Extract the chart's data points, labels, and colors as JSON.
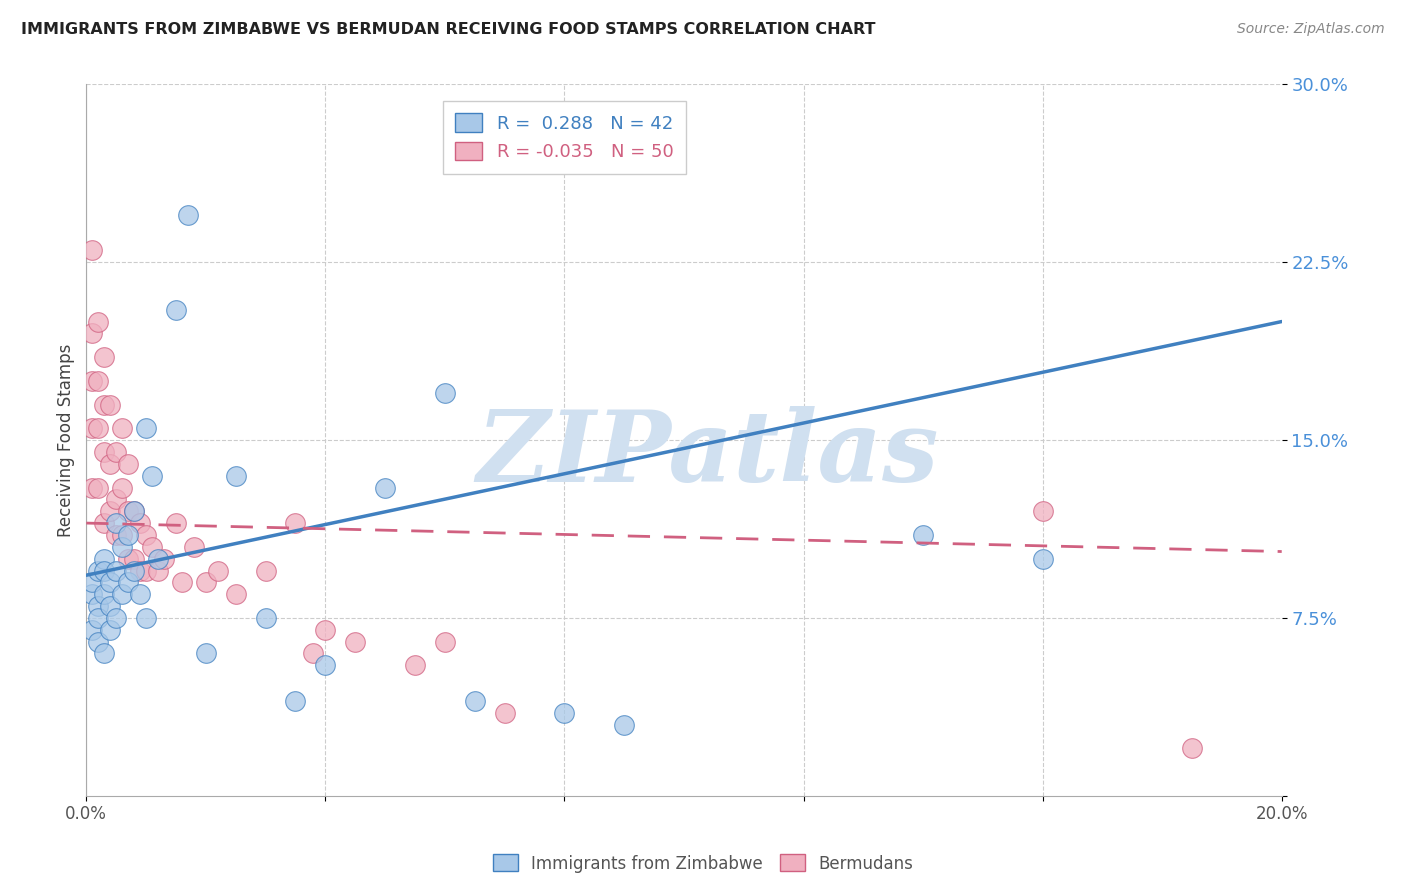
{
  "title": "IMMIGRANTS FROM ZIMBABWE VS BERMUDAN RECEIVING FOOD STAMPS CORRELATION CHART",
  "source": "Source: ZipAtlas.com",
  "ylabel": "Receiving Food Stamps",
  "xlim": [
    0.0,
    0.2
  ],
  "ylim": [
    0.0,
    0.3
  ],
  "yticks": [
    0.0,
    0.075,
    0.15,
    0.225,
    0.3
  ],
  "yticklabels": [
    "",
    "7.5%",
    "15.0%",
    "22.5%",
    "30.0%"
  ],
  "legend_R1": "R =  0.288",
  "legend_N1": "N = 42",
  "legend_R2": "R = -0.035",
  "legend_N2": "N = 50",
  "blue_color": "#a8c8e8",
  "pink_color": "#f0b0c0",
  "trend_blue": "#4080c0",
  "trend_pink": "#d06080",
  "watermark": "ZIPatlas",
  "watermark_color": "#d0e0f0",
  "background_color": "#ffffff",
  "zimbabwe_x": [
    0.001,
    0.001,
    0.001,
    0.002,
    0.002,
    0.002,
    0.002,
    0.003,
    0.003,
    0.003,
    0.003,
    0.004,
    0.004,
    0.004,
    0.005,
    0.005,
    0.005,
    0.006,
    0.006,
    0.007,
    0.007,
    0.008,
    0.008,
    0.009,
    0.01,
    0.01,
    0.011,
    0.012,
    0.015,
    0.017,
    0.02,
    0.025,
    0.03,
    0.035,
    0.04,
    0.05,
    0.06,
    0.065,
    0.08,
    0.09,
    0.14,
    0.16
  ],
  "zimbabwe_y": [
    0.085,
    0.09,
    0.07,
    0.095,
    0.08,
    0.075,
    0.065,
    0.1,
    0.085,
    0.095,
    0.06,
    0.09,
    0.08,
    0.07,
    0.115,
    0.095,
    0.075,
    0.105,
    0.085,
    0.11,
    0.09,
    0.12,
    0.095,
    0.085,
    0.155,
    0.075,
    0.135,
    0.1,
    0.205,
    0.245,
    0.06,
    0.135,
    0.075,
    0.04,
    0.055,
    0.13,
    0.17,
    0.04,
    0.035,
    0.03,
    0.11,
    0.1
  ],
  "bermuda_x": [
    0.001,
    0.001,
    0.001,
    0.001,
    0.001,
    0.002,
    0.002,
    0.002,
    0.002,
    0.003,
    0.003,
    0.003,
    0.003,
    0.004,
    0.004,
    0.004,
    0.005,
    0.005,
    0.005,
    0.006,
    0.006,
    0.006,
    0.007,
    0.007,
    0.007,
    0.008,
    0.008,
    0.009,
    0.009,
    0.01,
    0.01,
    0.011,
    0.012,
    0.013,
    0.015,
    0.016,
    0.018,
    0.02,
    0.022,
    0.025,
    0.03,
    0.035,
    0.038,
    0.04,
    0.045,
    0.055,
    0.06,
    0.07,
    0.16,
    0.185
  ],
  "bermuda_y": [
    0.23,
    0.195,
    0.175,
    0.155,
    0.13,
    0.2,
    0.175,
    0.155,
    0.13,
    0.185,
    0.165,
    0.145,
    0.115,
    0.165,
    0.14,
    0.12,
    0.145,
    0.125,
    0.11,
    0.155,
    0.13,
    0.11,
    0.14,
    0.12,
    0.1,
    0.12,
    0.1,
    0.115,
    0.095,
    0.11,
    0.095,
    0.105,
    0.095,
    0.1,
    0.115,
    0.09,
    0.105,
    0.09,
    0.095,
    0.085,
    0.095,
    0.115,
    0.06,
    0.07,
    0.065,
    0.055,
    0.065,
    0.035,
    0.12,
    0.02
  ],
  "blue_trend_x0": 0.0,
  "blue_trend_y0": 0.093,
  "blue_trend_x1": 0.2,
  "blue_trend_y1": 0.2,
  "pink_trend_x0": 0.0,
  "pink_trend_y0": 0.115,
  "pink_trend_x1": 0.2,
  "pink_trend_y1": 0.103
}
